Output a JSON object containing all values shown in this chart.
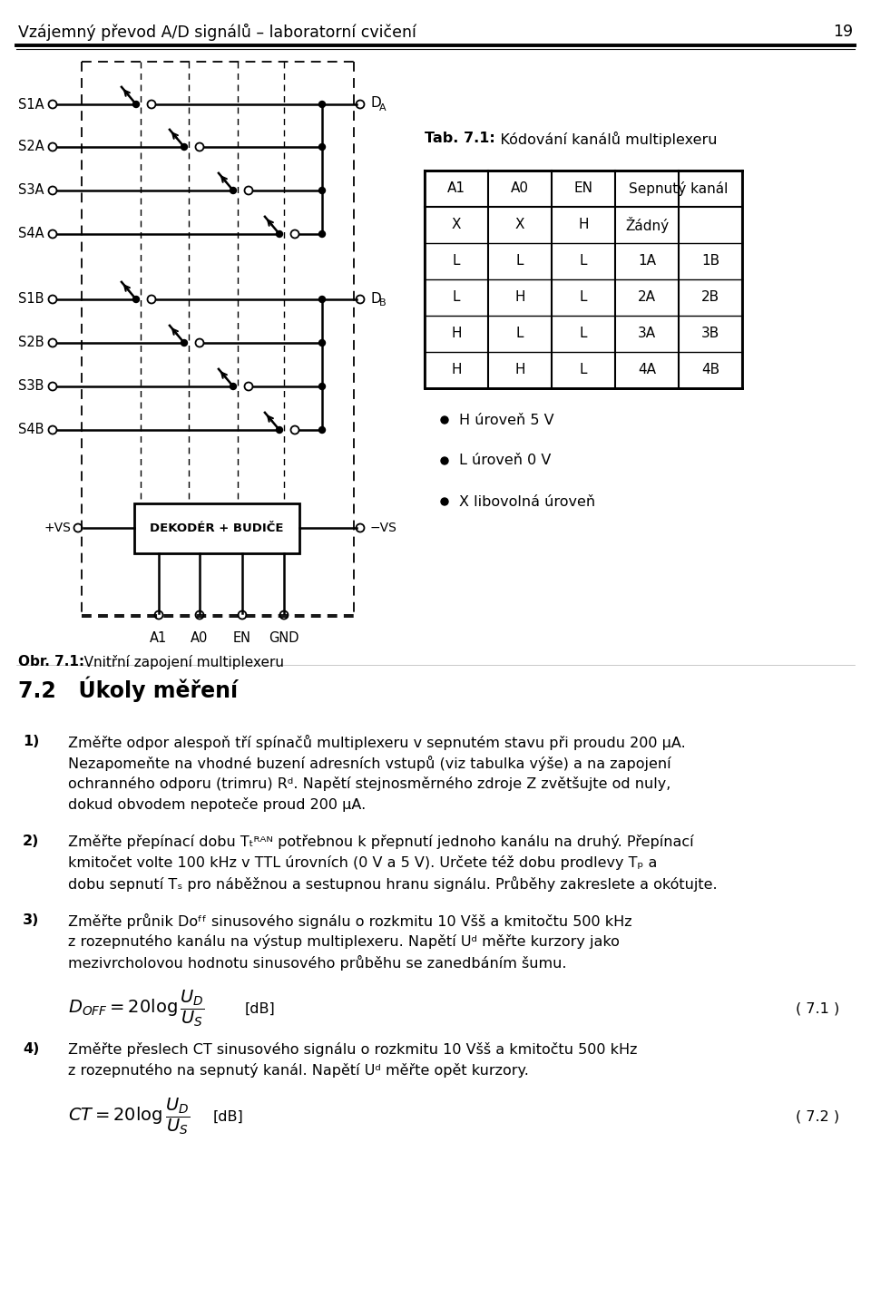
{
  "page_title": "Vzájemný převod A/D signálů – laboratorní cvičení",
  "page_number": "19",
  "fig_caption_bold": "Obr. 7.1:",
  "fig_caption_normal": "   Vnitřní zapojení multiplexeru",
  "section_title": "7.2   Úkoly měření",
  "table_title_bold": "Tab. 7.1:",
  "table_title_normal": "   Kódování kanálů multiplexeru",
  "table_headers": [
    "A1",
    "A0",
    "EN",
    "Sepnutý kanál"
  ],
  "table_rows": [
    [
      "X",
      "X",
      "H",
      "Žádný",
      ""
    ],
    [
      "L",
      "L",
      "L",
      "1A",
      "1B"
    ],
    [
      "L",
      "H",
      "L",
      "2A",
      "2B"
    ],
    [
      "H",
      "L",
      "L",
      "3A",
      "3B"
    ],
    [
      "H",
      "H",
      "L",
      "4A",
      "4B"
    ]
  ],
  "legend": [
    "H úroveň 5 V",
    "L úroveň 0 V",
    "X libovolná úroveň"
  ],
  "p1_num": "1)",
  "p1_text": "Změřte odpor alespoň tří spínačů multiplexeru v sepnutém stavu při proudu 200 µA.\nNezapomeňte na vhodné buzení adresních vstupů (viz tabulka výše) a na zapojení\nochranného odporu (trimru) Rᵈ. Napětí stejnosměrného zdroje Z zvětšujte od nuly,\ndokud obvodem nepoteče proud 200 µA.",
  "p2_num": "2)",
  "p2_text": "Změřte přepínací dobu Tₜᴿᴬᴺ potřebnou k přepnutí jednoho kanálu na druhý. Přepínací\nkmitočet volte 100 kHz v TTL úrovních (0 V a 5 V). Určete též dobu prodlevy Tₚ a\ndobu sepnutí Tₛ pro náběžnou a sestupnou hranu signálu. Průběhy zakreslete a okótujte.",
  "p3_num": "3)",
  "p3_text": "Změřte průnik Dᴏᶠᶠ sinusového signálu o rozkmitu 10 Všš a kmitočtu 500 kHz\nz rozepnutého kanálu na výstup multiplexeru. Napětí Uᵈ měřte kurzory jako\nmezivrcholovou hodnotu sinusového průběhu se zanedbáním šumu.",
  "p4_num": "4)",
  "p4_text": "Změřte přeslech CT sinusového signálu o rozkmitu 10 Všš a kmitočtu 500 kHz\nz rozepnutého na sepnutý kanál. Napětí Uᵈ měřte opět kurzory.",
  "formula1_ref": "( 7.1 )",
  "formula2_ref": "( 7.2 )"
}
